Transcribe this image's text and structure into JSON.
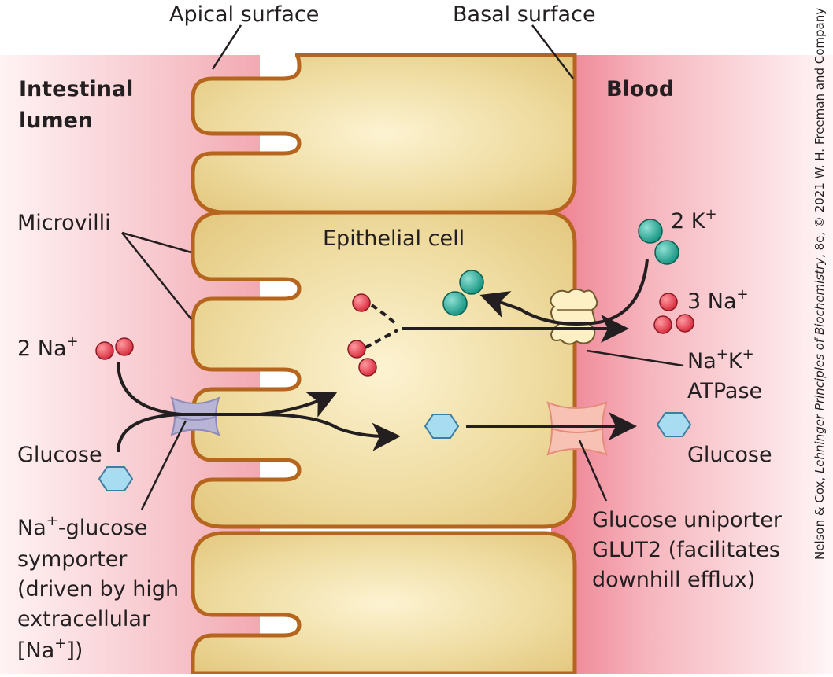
{
  "labels": {
    "apical_surface": "Apical surface",
    "basal_surface": "Basal surface",
    "intestinal_lumen_line1": "Intestinal",
    "intestinal_lumen_line2": "lumen",
    "blood": "Blood",
    "microvilli": "Microvilli",
    "epithelial_cell": "Epithelial cell",
    "na_left": "2 Na",
    "na_left_charge": "+",
    "glucose_left": "Glucose",
    "symporter_line1_a": "Na",
    "symporter_line1_sup": "+",
    "symporter_line1_b": "-glucose",
    "symporter_line2": "symporter",
    "symporter_line3": "(driven by high",
    "symporter_line4": "extracellular",
    "symporter_line5_a": "[Na",
    "symporter_line5_sup": "+",
    "symporter_line5_b": "])",
    "k_right": "2 K",
    "k_right_charge": "+",
    "na_right": "3 Na",
    "na_right_charge": "+",
    "atpase_line1_a": "Na",
    "atpase_line1_sup1": "+",
    "atpase_line1_b": "K",
    "atpase_line1_sup2": "+",
    "atpase_line2": "ATPase",
    "glucose_right": "Glucose",
    "uniporter_line1": "Glucose uniporter",
    "uniporter_line2": "GLUT2 (facilitates",
    "uniporter_line3": "downhill efflux)"
  },
  "credit": {
    "prefix": "Nelson & Cox, ",
    "book": "Lehninger Principles of Biochemistry",
    "suffix": ", 8e, © 2021 W. H. Freeman and Company"
  },
  "colors": {
    "lumen_pink": "#f4b8be",
    "blood_pink": "#f08a98",
    "cell_fill": "#e9d28f",
    "cell_border": "#b5651d",
    "sodium": "#e0424d",
    "potassium": "#1fa89a",
    "glucose": "#a8dcf0",
    "symporter": "#b7b4d6",
    "atpase": "#fdf0c4",
    "uniporter": "#f7c1b4"
  }
}
